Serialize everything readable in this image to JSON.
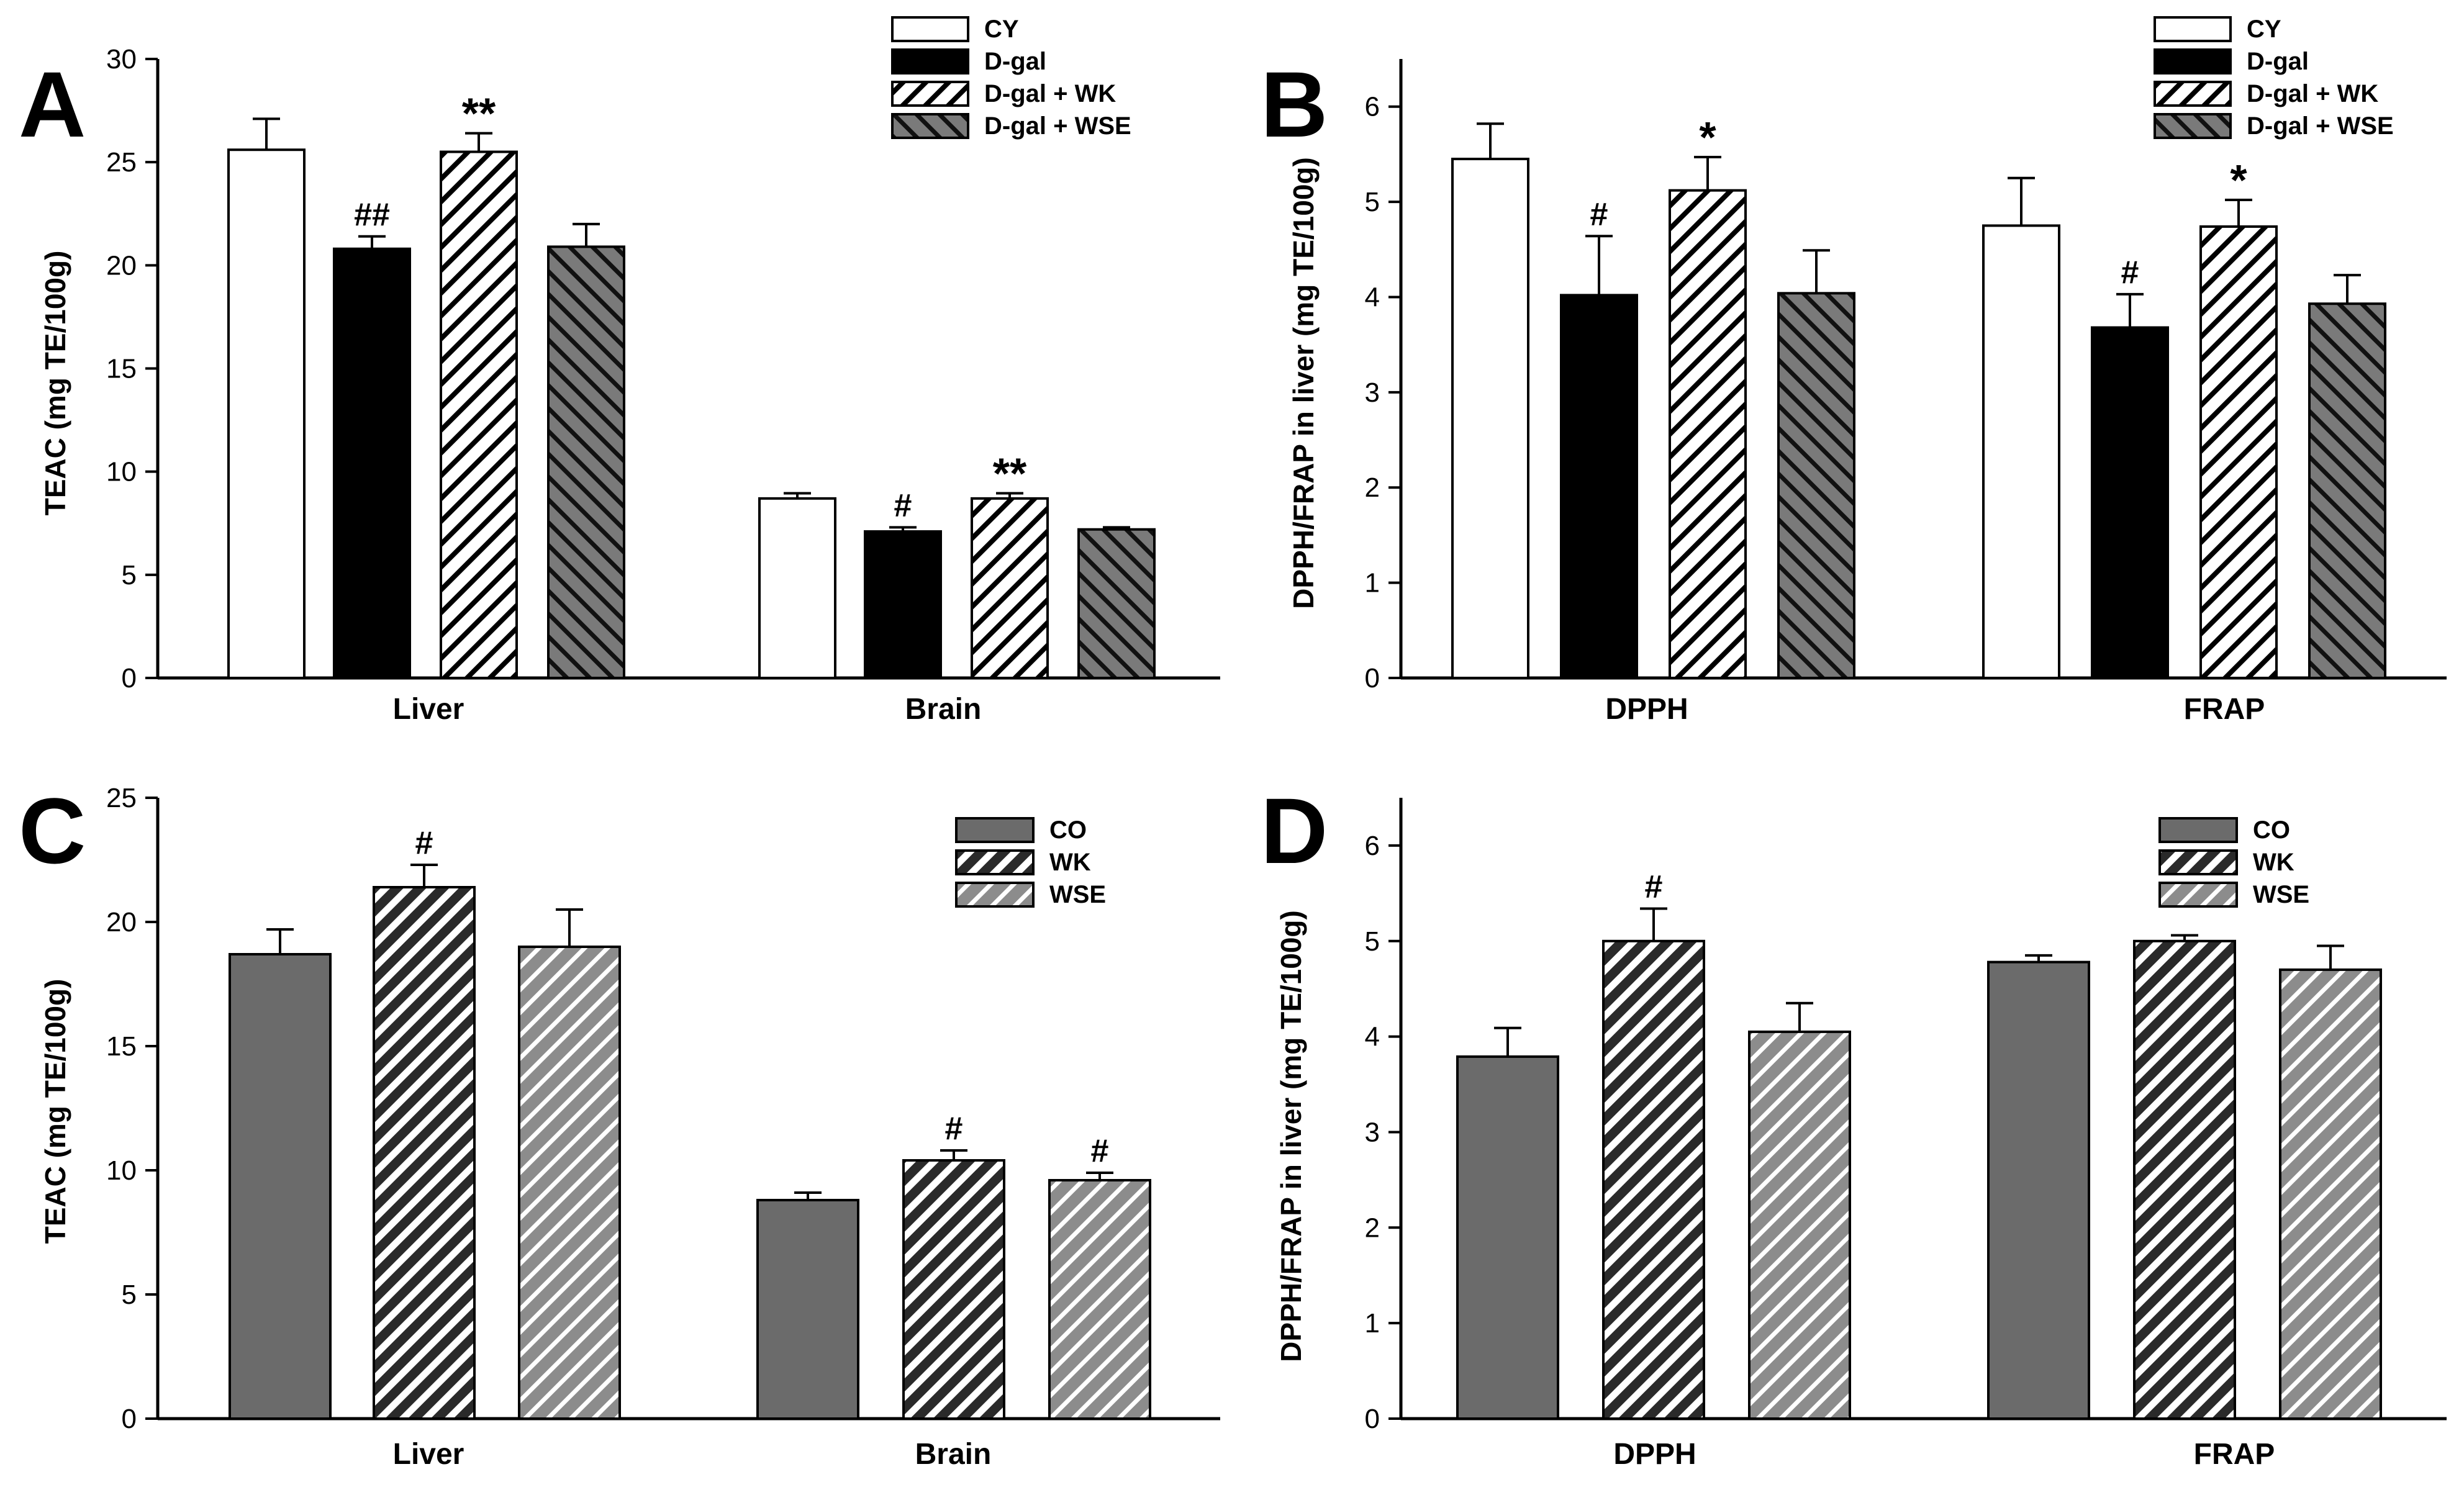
{
  "chart_data": [
    {
      "panel": "A",
      "type": "bar",
      "title": "",
      "xlabel": "",
      "ylabel": "TEAC (mg TE/100g)",
      "ylim": [
        0,
        30
      ],
      "yticks": [
        0,
        5,
        10,
        15,
        20,
        25,
        30
      ],
      "categories": [
        "Liver",
        "Brain"
      ],
      "legend_position": "top-right",
      "series": [
        {
          "name": "CY",
          "style": "white",
          "values": [
            25.6,
            8.7
          ],
          "errors": [
            1.5,
            0.25
          ],
          "sig": [
            "",
            ""
          ]
        },
        {
          "name": "D-gal",
          "style": "black",
          "values": [
            20.8,
            7.1
          ],
          "errors": [
            0.6,
            0.2
          ],
          "sig": [
            "##",
            "#"
          ]
        },
        {
          "name": "D-gal + WK",
          "style": "hatch-white",
          "values": [
            25.5,
            8.7
          ],
          "errors": [
            0.9,
            0.25
          ],
          "sig": [
            "**",
            "**"
          ]
        },
        {
          "name": "D-gal + WSE",
          "style": "hatch-gray",
          "values": [
            20.9,
            7.2
          ],
          "errors": [
            1.1,
            0.1
          ],
          "sig": [
            "",
            ""
          ]
        }
      ]
    },
    {
      "panel": "B",
      "type": "bar",
      "title": "",
      "xlabel": "",
      "ylabel": "DPPH/FRAP in liver (mg TE/100g)",
      "ylim": [
        0,
        6.5
      ],
      "yticks": [
        0,
        1,
        2,
        3,
        4,
        5,
        6
      ],
      "categories": [
        "DPPH",
        "FRAP"
      ],
      "legend_position": "top-right",
      "series": [
        {
          "name": "CY",
          "style": "white",
          "values": [
            5.45,
            4.75
          ],
          "errors": [
            0.37,
            0.5
          ],
          "sig": [
            "",
            ""
          ]
        },
        {
          "name": "D-gal",
          "style": "black",
          "values": [
            4.02,
            3.68
          ],
          "errors": [
            0.62,
            0.35
          ],
          "sig": [
            "#",
            "#"
          ]
        },
        {
          "name": "D-gal + WK",
          "style": "hatch-white",
          "values": [
            5.12,
            4.74
          ],
          "errors": [
            0.35,
            0.28
          ],
          "sig": [
            "*",
            "*"
          ]
        },
        {
          "name": "D-gal + WSE",
          "style": "hatch-gray",
          "values": [
            4.04,
            3.93
          ],
          "errors": [
            0.45,
            0.3
          ],
          "sig": [
            "",
            ""
          ]
        }
      ]
    },
    {
      "panel": "C",
      "type": "bar",
      "title": "",
      "xlabel": "",
      "ylabel": "TEAC (mg TE/100g)",
      "ylim": [
        0,
        25
      ],
      "yticks": [
        0,
        5,
        10,
        15,
        20,
        25
      ],
      "categories": [
        "Liver",
        "Brain"
      ],
      "legend_position": "top-right",
      "series": [
        {
          "name": "CO",
          "style": "solid-gray",
          "values": [
            18.7,
            8.8
          ],
          "errors": [
            1.0,
            0.3
          ],
          "sig": [
            "",
            ""
          ]
        },
        {
          "name": "WK",
          "style": "hatch-dark",
          "values": [
            21.4,
            10.4
          ],
          "errors": [
            0.9,
            0.4
          ],
          "sig": [
            "#",
            "#"
          ]
        },
        {
          "name": "WSE",
          "style": "hatch-light",
          "values": [
            19.0,
            9.6
          ],
          "errors": [
            1.5,
            0.3
          ],
          "sig": [
            "",
            "#"
          ]
        }
      ]
    },
    {
      "panel": "D",
      "type": "bar",
      "title": "",
      "xlabel": "",
      "ylabel": "DPPH/FRAP in liver (mg TE/100g)",
      "ylim": [
        0,
        6.5
      ],
      "yticks": [
        0,
        1,
        2,
        3,
        4,
        5,
        6
      ],
      "categories": [
        "DPPH",
        "FRAP"
      ],
      "legend_position": "top-right",
      "series": [
        {
          "name": "CO",
          "style": "solid-gray",
          "values": [
            3.79,
            4.78
          ],
          "errors": [
            0.3,
            0.07
          ],
          "sig": [
            "",
            ""
          ]
        },
        {
          "name": "WK",
          "style": "hatch-dark",
          "values": [
            5.0,
            5.0
          ],
          "errors": [
            0.34,
            0.06
          ],
          "sig": [
            "#",
            ""
          ]
        },
        {
          "name": "WSE",
          "style": "hatch-light",
          "values": [
            4.05,
            4.7
          ],
          "errors": [
            0.3,
            0.25
          ],
          "sig": [
            "",
            ""
          ]
        }
      ]
    }
  ]
}
